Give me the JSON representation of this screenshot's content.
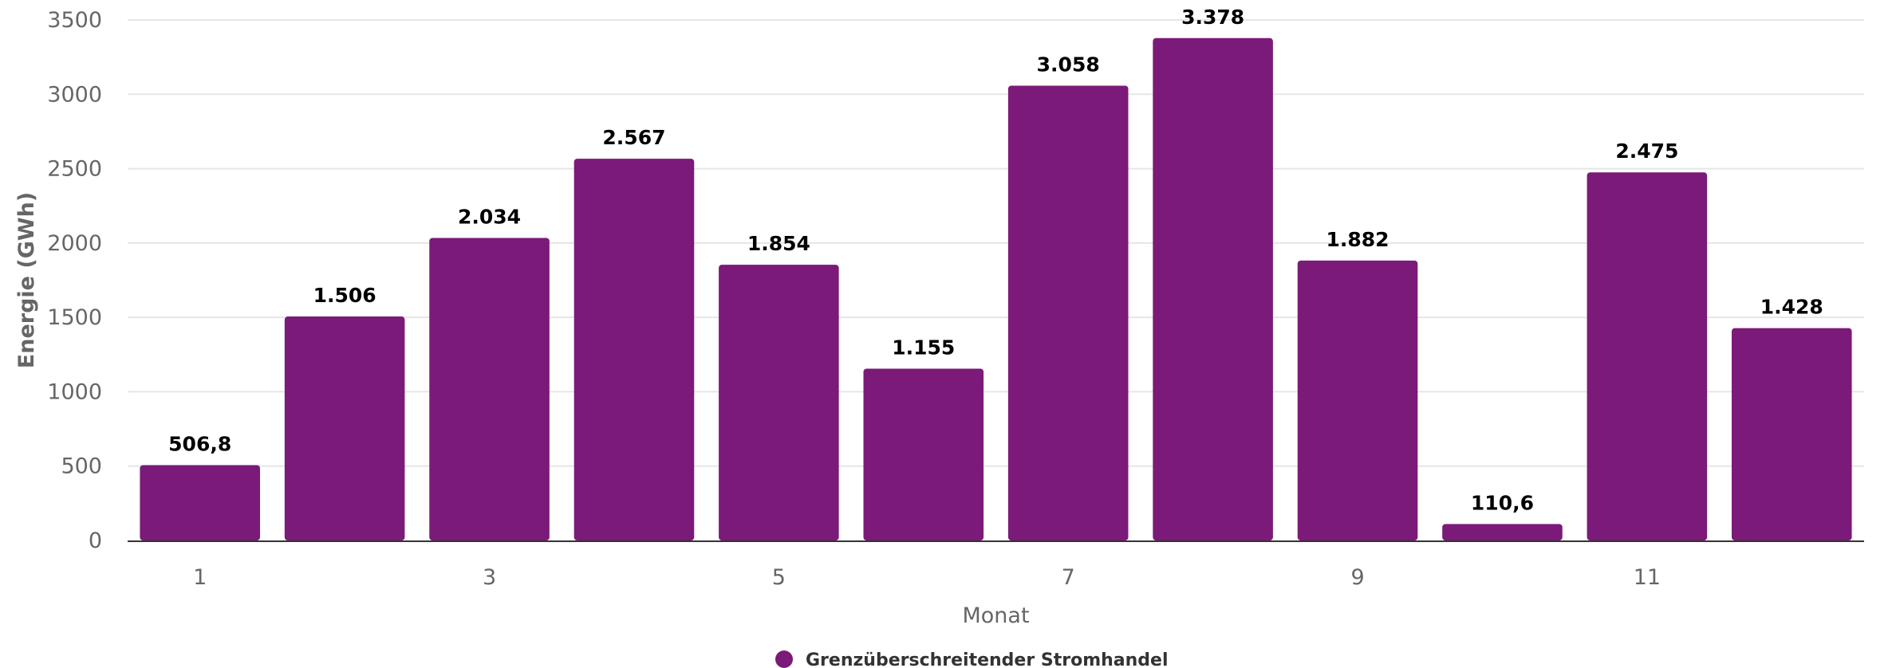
{
  "chart_data": {
    "type": "bar",
    "categories": [
      "1",
      "2",
      "3",
      "4",
      "5",
      "6",
      "7",
      "8",
      "9",
      "10",
      "11",
      "12"
    ],
    "x_tick_labels": [
      "1",
      "3",
      "5",
      "7",
      "9",
      "11"
    ],
    "series": [
      {
        "name": "Grenzüberschreitender Stromhandel",
        "color": "#7b1a78",
        "values": [
          506.8,
          1506,
          2034,
          2567,
          1854,
          1155,
          3058,
          3378,
          1882,
          110.6,
          2475,
          1428
        ],
        "data_labels": [
          "506,8",
          "1.506",
          "2.034",
          "2.567",
          "1.854",
          "1.155",
          "3.058",
          "3.378",
          "1.882",
          "110,6",
          "2.475",
          "1.428"
        ]
      }
    ],
    "xlabel": "Monat",
    "ylabel": "Energie (GWh)",
    "ylim": [
      0,
      3500
    ],
    "y_ticks": [
      0,
      500,
      1000,
      1500,
      2000,
      2500,
      3000,
      3500
    ],
    "grid": true,
    "legend": "bottom-center",
    "colors": {
      "bar": "#7b1a78",
      "grid": "#e6e6e6",
      "axis": "#333333",
      "tick_text": "#666666"
    }
  }
}
